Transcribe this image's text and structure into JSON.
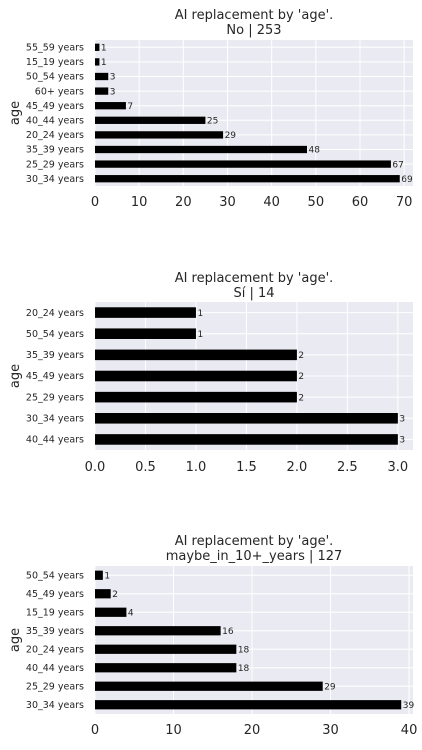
{
  "chart_data": [
    {
      "type": "bar",
      "orientation": "horizontal",
      "title_line1": "AI replacement by 'age'.",
      "title_line2": "No | 253",
      "ylabel": "age",
      "xlabel": "",
      "grid": true,
      "categories": [
        "55_59 years",
        "15_19 years",
        "50_54 years",
        "60+ years",
        "45_49 years",
        "40_44 years",
        "20_24 years",
        "35_39 years",
        "25_29 years",
        "30_34 years"
      ],
      "values": [
        1,
        1,
        3,
        3,
        7,
        25,
        29,
        48,
        67,
        69
      ],
      "xlim": [
        0,
        72
      ],
      "xticks": [
        0,
        10,
        20,
        30,
        40,
        50,
        60,
        70
      ],
      "bar_color": "#000000"
    },
    {
      "type": "bar",
      "orientation": "horizontal",
      "title_line1": "AI replacement by 'age'.",
      "title_line2": "Sí | 14",
      "ylabel": "age",
      "xlabel": "",
      "grid": true,
      "categories": [
        "20_24 years",
        "50_54 years",
        "35_39 years",
        "45_49 years",
        "25_29 years",
        "30_34 years",
        "40_44 years"
      ],
      "values": [
        1,
        1,
        2,
        2,
        2,
        3,
        3
      ],
      "xlim": [
        0,
        3.15
      ],
      "xticks": [
        "0.0",
        "0.5",
        "1.0",
        "1.5",
        "2.0",
        "2.5",
        "3.0"
      ],
      "bar_color": "#000000"
    },
    {
      "type": "bar",
      "orientation": "horizontal",
      "title_line1": "AI replacement by 'age'.",
      "title_line2": "maybe_in_10+_years | 127",
      "ylabel": "age",
      "xlabel": "",
      "grid": true,
      "categories": [
        "50_54 years",
        "45_49 years",
        "15_19 years",
        "35_39 years",
        "20_24 years",
        "40_44 years",
        "25_29 years",
        "30_34 years"
      ],
      "values": [
        1,
        2,
        4,
        16,
        18,
        18,
        29,
        39
      ],
      "xlim": [
        0,
        40.5
      ],
      "xticks": [
        0,
        10,
        20,
        30,
        40
      ],
      "bar_color": "#000000"
    }
  ],
  "colors": {
    "plot_background": "#eaeaf2",
    "grid": "#ffffff",
    "bar": "#000000",
    "text": "#262626"
  }
}
